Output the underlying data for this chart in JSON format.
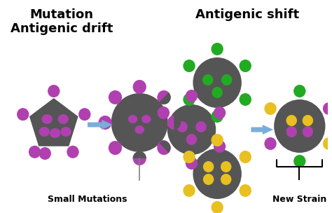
{
  "bg_color": "#ffffff",
  "dark_gray": "#555555",
  "purple": "#b040b0",
  "green": "#22aa22",
  "yellow": "#e8c020",
  "arrow_color": "#7aadda",
  "title_left": "Mutation\nAntigenic drift",
  "title_right": "Antigenic shift",
  "label_left": "Small Mutations",
  "label_right": "New Strain",
  "figsize": [
    4.74,
    3.04
  ],
  "dpi": 100
}
